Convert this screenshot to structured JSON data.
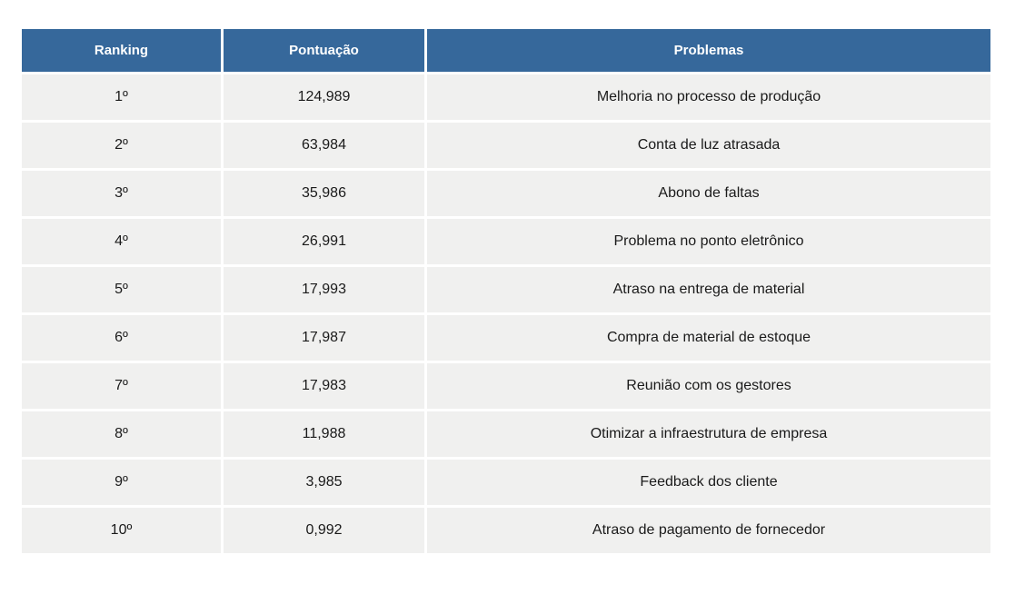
{
  "chart_data": {
    "type": "table",
    "title": "",
    "columns": [
      "Ranking",
      "Pontuação",
      "Problemas"
    ],
    "rows": [
      [
        "1º",
        "124,989",
        "Melhoria no processo de produção"
      ],
      [
        "2º",
        "63,984",
        "Conta de luz atrasada"
      ],
      [
        "3º",
        "35,986",
        "Abono de faltas"
      ],
      [
        "4º",
        "26,991",
        "Problema no ponto eletrônico"
      ],
      [
        "5º",
        "17,993",
        "Atraso na entrega de material"
      ],
      [
        "6º",
        "17,987",
        "Compra de material de estoque"
      ],
      [
        "7º",
        "17,983",
        "Reunião com os gestores"
      ],
      [
        "8º",
        "11,988",
        "Otimizar a infraestrutura de empresa"
      ],
      [
        "9º",
        "3,985",
        "Feedback dos cliente"
      ],
      [
        "10º",
        "0,992",
        "Atraso de pagamento de fornecedor"
      ]
    ],
    "layout_hints": {
      "header_position": "top",
      "grid": "white gaps between uniform light-gray cells",
      "alignment": "center"
    }
  },
  "colors": {
    "header_background": "#36689B",
    "header_text": "#FFFFFF",
    "cell_background": "#F0F0EF",
    "body_text": "#1A1A1A",
    "gap": "#FFFFFF"
  }
}
